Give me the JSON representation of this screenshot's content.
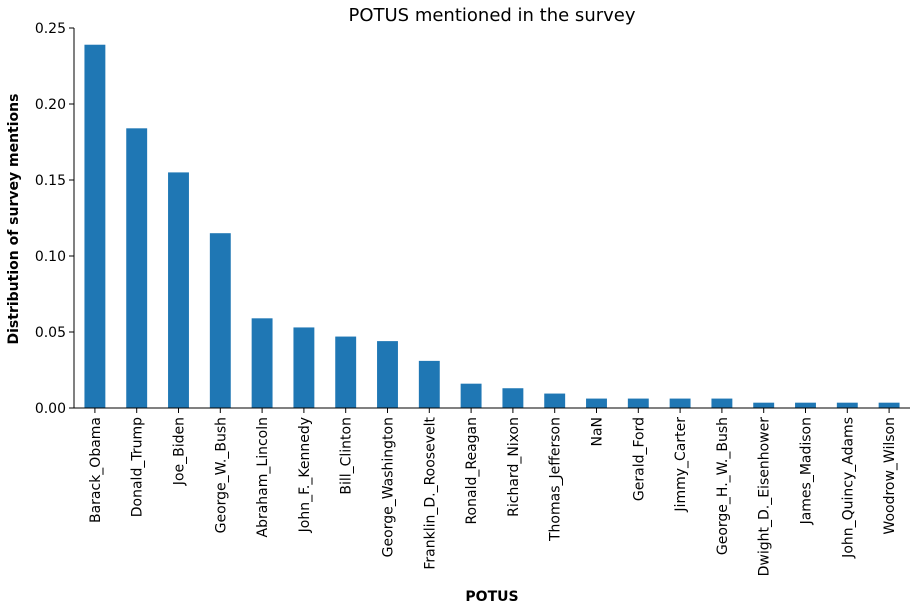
{
  "chart_data": {
    "type": "bar",
    "title": "POTUS mentioned in the survey",
    "xlabel": "POTUS",
    "ylabel": "Distribution of survey mentions",
    "categories": [
      "Barack_Obama",
      "Donald_Trump",
      "Joe_Biden",
      "George_W._Bush",
      "Abraham_Lincoln",
      "John_F._Kennedy",
      "Bill_Clinton",
      "George_Washington",
      "Franklin_D._Roosevelt",
      "Ronald_Reagan",
      "Richard_Nixon",
      "Thomas_Jefferson",
      "NaN",
      "Gerald_Ford",
      "Jimmy_Carter",
      "George_H._W._Bush",
      "Dwight_D._Eisenhower",
      "James_Madison",
      "John_Quincy_Adams",
      "Woodrow_Wilson"
    ],
    "values": [
      0.239,
      0.184,
      0.155,
      0.115,
      0.059,
      0.053,
      0.047,
      0.044,
      0.031,
      0.016,
      0.013,
      0.0095,
      0.0062,
      0.0062,
      0.0062,
      0.0062,
      0.0035,
      0.0035,
      0.0035,
      0.0035
    ],
    "ylim": [
      0,
      0.25
    ],
    "yticks": [
      0.0,
      0.05,
      0.1,
      0.15,
      0.2,
      0.25
    ],
    "ytick_labels": [
      "0.00",
      "0.05",
      "0.10",
      "0.15",
      "0.20",
      "0.25"
    ],
    "bar_color": "#1f77b4",
    "grid": false,
    "legend": false
  }
}
